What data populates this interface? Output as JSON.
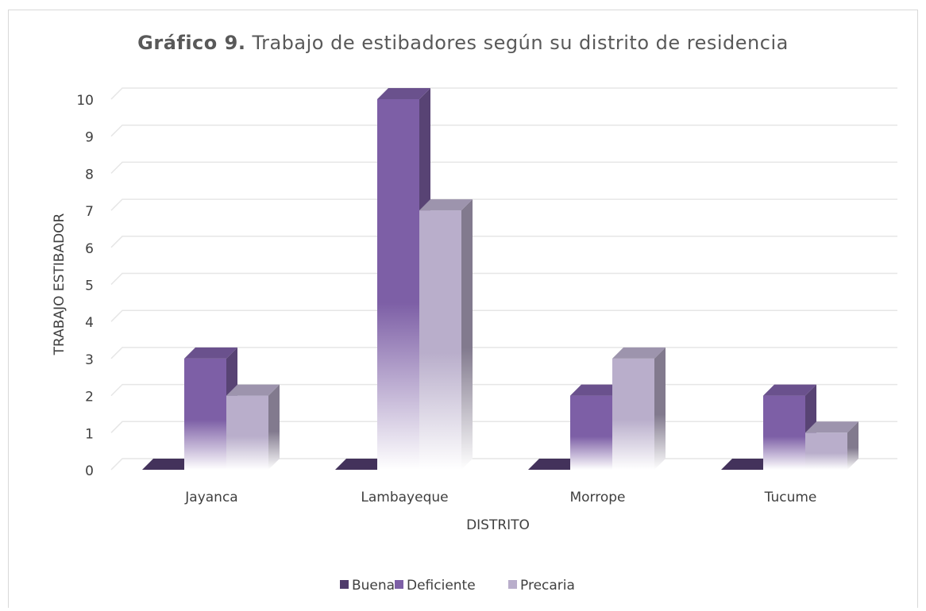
{
  "chart_data": {
    "type": "bar3d",
    "title_number": "Gráfico 9.",
    "title": "Trabajo de estibadores según su distrito de residencia",
    "x_label": "DISTRITO",
    "y_label": "TRABAJO ESTIBADOR",
    "categories": [
      "Jayanca",
      "Lambayeque",
      "Morrope",
      "Tucume"
    ],
    "series": [
      {
        "name": "Buena",
        "color": "#4f3b6b",
        "values": [
          0,
          0,
          0,
          0
        ]
      },
      {
        "name": "Deficiente",
        "color": "#7d5fa6",
        "values": [
          3,
          10,
          2,
          2
        ]
      },
      {
        "name": "Precaria",
        "color": "#b9aecb",
        "values": [
          2,
          7,
          3,
          1
        ]
      }
    ],
    "ylim": [
      0,
      10
    ],
    "yticks": [
      0,
      1,
      2,
      3,
      4,
      5,
      6,
      7,
      8,
      9,
      10
    ],
    "grid": true,
    "legend": "bottom"
  }
}
